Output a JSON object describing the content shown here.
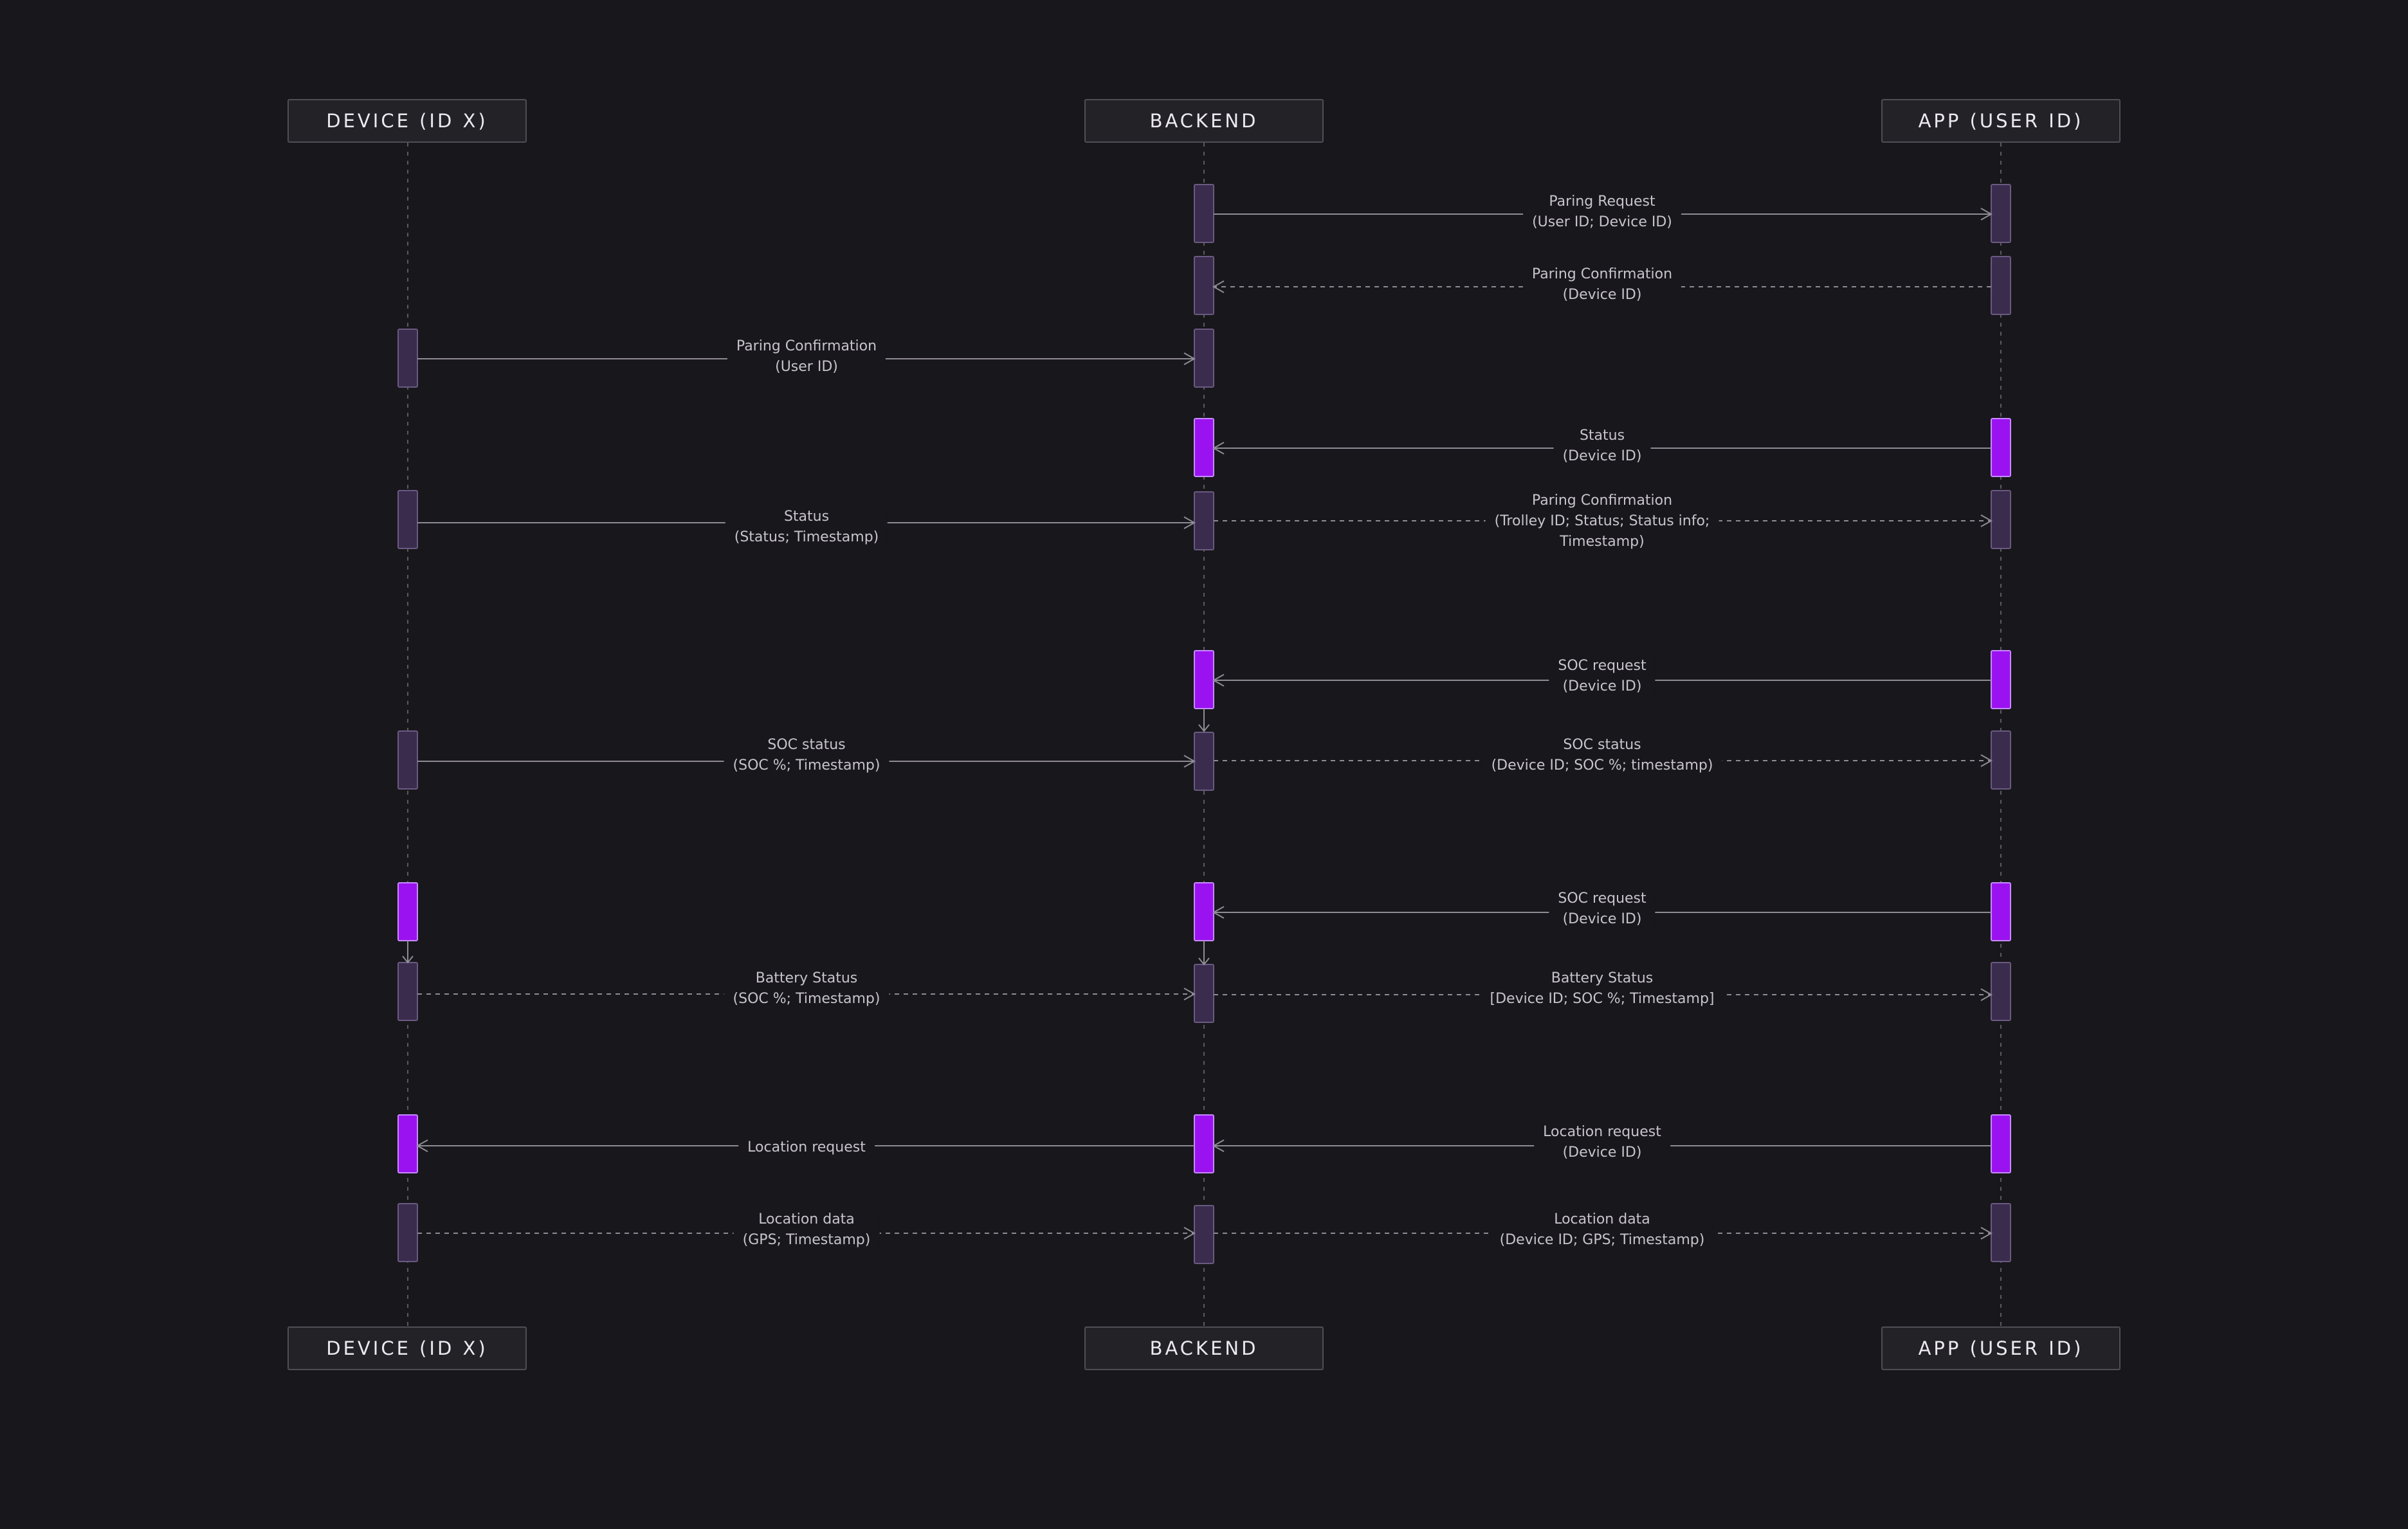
{
  "colors": {
    "background": "#18171b",
    "header_bg": "#232226",
    "header_border": "#4f4e55",
    "lifeline": "#5b5a61",
    "arrow": "#8f8c96",
    "activation_idle_fill": "#3a2c4d",
    "activation_idle_stroke": "#6a5a82",
    "activation_active_fill": "#9b12f0",
    "activation_active_stroke": "#c58bff"
  },
  "participants": [
    {
      "id": "device",
      "label": "DEVICE (ID X)"
    },
    {
      "id": "backend",
      "label": "BACKEND"
    },
    {
      "id": "app",
      "label": "APP (USER ID)"
    }
  ],
  "messages": [
    {
      "from": "backend",
      "to": "app",
      "style": "solid",
      "lines": [
        "Paring Request",
        "(User ID; Device ID)"
      ]
    },
    {
      "from": "app",
      "to": "backend",
      "style": "dashed",
      "lines": [
        "Paring Confirmation",
        "(Device ID)"
      ]
    },
    {
      "from": "device",
      "to": "backend",
      "style": "solid",
      "lines": [
        "Paring Confirmation",
        "(User ID)"
      ]
    },
    {
      "from": "app",
      "to": "backend",
      "style": "solid",
      "lines": [
        "Status",
        "(Device ID)"
      ]
    },
    {
      "from": "device",
      "to": "backend",
      "style": "solid",
      "lines": [
        "Status",
        "(Status; Timestamp)"
      ]
    },
    {
      "from": "backend",
      "to": "app",
      "style": "dashed",
      "lines": [
        "Paring Confirmation",
        "(Trolley ID; Status; Status info;",
        "Timestamp)"
      ]
    },
    {
      "from": "app",
      "to": "backend",
      "style": "solid",
      "lines": [
        "SOC request",
        "(Device ID)"
      ]
    },
    {
      "from": "device",
      "to": "backend",
      "style": "solid",
      "lines": [
        "SOC status",
        "(SOC %; Timestamp)"
      ]
    },
    {
      "from": "backend",
      "to": "app",
      "style": "dashed",
      "lines": [
        "SOC status",
        "(Device ID; SOC %; timestamp)"
      ]
    },
    {
      "from": "app",
      "to": "backend",
      "style": "solid",
      "lines": [
        "SOC request",
        "(Device ID)"
      ]
    },
    {
      "from": "device",
      "to": "backend",
      "style": "dashed",
      "lines": [
        "Battery Status",
        "(SOC %; Timestamp)"
      ]
    },
    {
      "from": "backend",
      "to": "app",
      "style": "dashed",
      "lines": [
        "Battery Status",
        "[Device ID; SOC %; Timestamp]"
      ]
    },
    {
      "from": "backend",
      "to": "device",
      "style": "solid",
      "lines": [
        "Location request"
      ]
    },
    {
      "from": "app",
      "to": "backend",
      "style": "solid",
      "lines": [
        "Location request",
        "(Device ID)"
      ]
    },
    {
      "from": "device",
      "to": "backend",
      "style": "dashed",
      "lines": [
        "Location data",
        "(GPS; Timestamp)"
      ]
    },
    {
      "from": "backend",
      "to": "app",
      "style": "dashed",
      "lines": [
        "Location data",
        "(Device ID; GPS; Timestamp)"
      ]
    }
  ]
}
